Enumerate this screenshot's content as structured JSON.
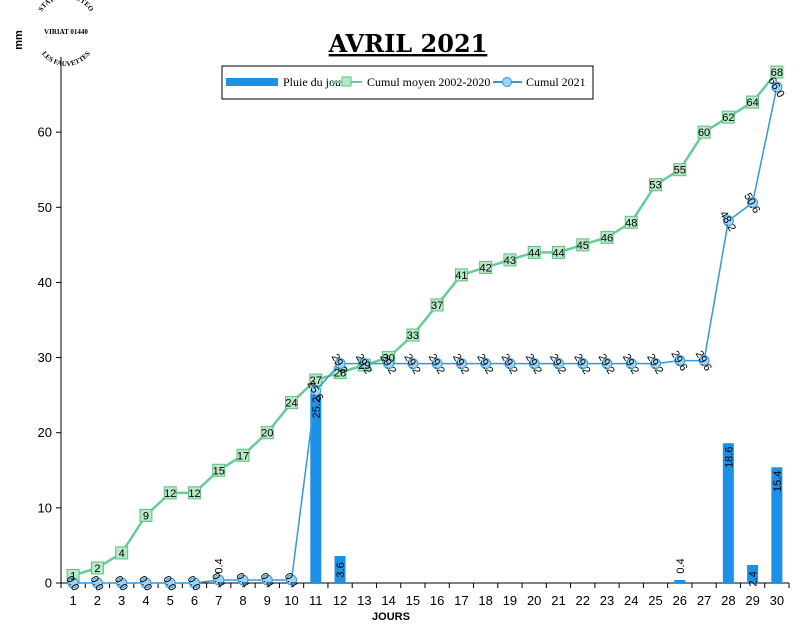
{
  "stamp": {
    "top_text": "STATION METEO",
    "middle_text": "VIRIAT 01440",
    "bottom_text": "LES FAUVETTES"
  },
  "chart_data": {
    "type": "bar",
    "title": "AVRIL 2021",
    "xlabel": "JOURS",
    "ylabel": "mm",
    "ylim": [
      0,
      70
    ],
    "yticks": [
      0,
      10,
      20,
      30,
      40,
      50,
      60
    ],
    "grid": false,
    "legend_position": "top",
    "categories": [
      "1",
      "2",
      "3",
      "4",
      "5",
      "6",
      "7",
      "8",
      "9",
      "10",
      "11",
      "12",
      "13",
      "14",
      "15",
      "16",
      "17",
      "18",
      "19",
      "20",
      "21",
      "22",
      "23",
      "24",
      "25",
      "26",
      "27",
      "28",
      "29",
      "30"
    ],
    "series": [
      {
        "name": "Pluie du jour",
        "type": "bar",
        "color": "#1a90e6",
        "values": [
          0.0,
          0.0,
          0.0,
          0.0,
          0.0,
          0.0,
          0.4,
          0.0,
          0.0,
          0.0,
          25.2,
          3.6,
          0.0,
          0.0,
          0.0,
          0.0,
          0.0,
          0.0,
          0.0,
          0.0,
          0.0,
          0.0,
          0.0,
          0.0,
          0.0,
          0.4,
          0.0,
          18.6,
          2.4,
          15.4
        ],
        "labels": [
          "",
          "",
          "",
          "",
          "",
          "",
          "0.4",
          "",
          "",
          "",
          "25.2",
          "3.6",
          "",
          "",
          "",
          "",
          "",
          "",
          "",
          "",
          "",
          "",
          "",
          "",
          "",
          "0.4",
          "",
          "18.6",
          "2.4",
          "15.4"
        ]
      },
      {
        "name": "Cumul moyen 2002-2020",
        "type": "line",
        "color": "#66cc99",
        "marker": "square",
        "values": [
          1,
          2,
          4,
          9,
          12,
          12,
          15,
          17,
          20,
          24,
          27,
          28,
          29,
          30,
          33,
          37,
          41,
          42,
          43,
          44,
          44,
          45,
          46,
          48,
          53,
          55,
          60,
          62,
          64,
          68
        ],
        "labels": [
          "1",
          "2",
          "4",
          "9",
          "12",
          "12",
          "15",
          "17",
          "20",
          "24",
          "27",
          "28",
          "29",
          "30",
          "33",
          "37",
          "41",
          "42",
          "43",
          "44",
          "44",
          "45",
          "46",
          "48",
          "53",
          "55",
          "60",
          "62",
          "64",
          "68"
        ]
      },
      {
        "name": "Cumul 2021",
        "type": "line",
        "color": "#3399dd",
        "marker": "circle",
        "values": [
          0.0,
          0.0,
          0.0,
          0.0,
          0.0,
          0.0,
          0.4,
          0.4,
          0.4,
          0.4,
          25.6,
          29.2,
          29.2,
          29.2,
          29.2,
          29.2,
          29.2,
          29.2,
          29.2,
          29.2,
          29.2,
          29.2,
          29.2,
          29.2,
          29.2,
          29.6,
          29.6,
          48.2,
          50.6,
          66.0
        ],
        "labels": [
          "0.0",
          "0.0",
          "0.0",
          "0.0",
          "0.0",
          "0.0",
          "0.4",
          "0.4",
          "0.4",
          "0.4",
          "25.6",
          "29.2",
          "29.2",
          "29.2",
          "29.2",
          "29.2",
          "29.2",
          "29.2",
          "29.2",
          "29.2",
          "29.2",
          "29.2",
          "29.2",
          "29.2",
          "29.2",
          "29.6",
          "29.6",
          "48.2",
          "50.6",
          "66.0"
        ]
      }
    ]
  }
}
